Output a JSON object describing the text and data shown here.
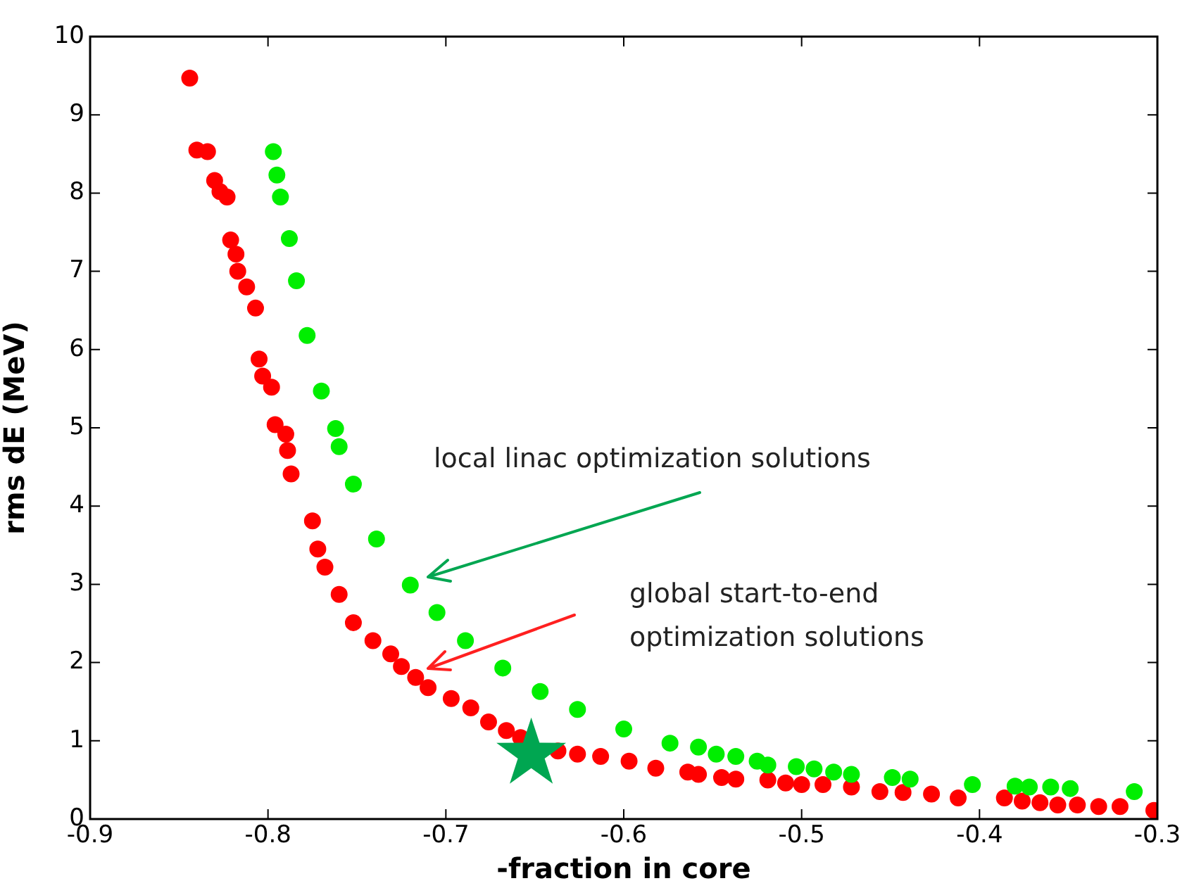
{
  "chart_data": {
    "type": "scatter",
    "xlabel": "-fraction in core",
    "ylabel": "rms dE (MeV)",
    "xlim": [
      -0.9,
      -0.3
    ],
    "xticks": [
      -0.9,
      -0.8,
      -0.7,
      -0.6,
      -0.5,
      -0.4,
      -0.3
    ],
    "ylim": [
      0,
      10
    ],
    "yticks": [
      0,
      1,
      2,
      3,
      4,
      5,
      6,
      7,
      8,
      9,
      10
    ],
    "grid": false,
    "marker": "circle",
    "annotations": [
      "local linac optimization solutions",
      "global start-to-end\noptimization solutions"
    ],
    "series": [
      {
        "color": "#00ee00",
        "x": [
          -0.797,
          -0.795,
          -0.793,
          -0.788,
          -0.784,
          -0.778,
          -0.77,
          -0.762,
          -0.76,
          -0.752,
          -0.739,
          -0.72,
          -0.705,
          -0.689,
          -0.668,
          -0.647,
          -0.626,
          -0.6,
          -0.574,
          -0.558,
          -0.548,
          -0.537,
          -0.525,
          -0.519,
          -0.503,
          -0.493,
          -0.482,
          -0.472,
          -0.449,
          -0.439,
          -0.404,
          -0.38,
          -0.372,
          -0.36,
          -0.349,
          -0.313
        ],
        "values": [
          8.53,
          8.23,
          7.95,
          7.42,
          6.88,
          6.18,
          5.47,
          4.99,
          4.76,
          4.28,
          3.58,
          2.99,
          2.64,
          2.28,
          1.93,
          1.63,
          1.4,
          1.15,
          0.97,
          0.92,
          0.83,
          0.8,
          0.74,
          0.69,
          0.67,
          0.64,
          0.6,
          0.57,
          0.53,
          0.51,
          0.44,
          0.42,
          0.41,
          0.41,
          0.39,
          0.35
        ]
      },
      {
        "color": "#ff0000",
        "x": [
          -0.844,
          -0.84,
          -0.834,
          -0.83,
          -0.827,
          -0.823,
          -0.821,
          -0.818,
          -0.817,
          -0.812,
          -0.807,
          -0.805,
          -0.803,
          -0.798,
          -0.796,
          -0.79,
          -0.789,
          -0.787,
          -0.775,
          -0.772,
          -0.768,
          -0.76,
          -0.752,
          -0.741,
          -0.731,
          -0.725,
          -0.717,
          -0.71,
          -0.697,
          -0.686,
          -0.676,
          -0.666,
          -0.658,
          -0.637,
          -0.626,
          -0.613,
          -0.597,
          -0.582,
          -0.564,
          -0.558,
          -0.545,
          -0.537,
          -0.519,
          -0.509,
          -0.5,
          -0.488,
          -0.472,
          -0.456,
          -0.443,
          -0.427,
          -0.412,
          -0.386,
          -0.376,
          -0.366,
          -0.356,
          -0.345,
          -0.333,
          -0.321,
          -0.302
        ],
        "values": [
          9.47,
          8.55,
          8.53,
          8.16,
          8.02,
          7.95,
          7.4,
          7.22,
          7.0,
          6.8,
          6.53,
          5.88,
          5.66,
          5.52,
          5.04,
          4.92,
          4.71,
          4.41,
          3.81,
          3.45,
          3.22,
          2.87,
          2.51,
          2.28,
          2.11,
          1.95,
          1.81,
          1.68,
          1.54,
          1.42,
          1.24,
          1.13,
          1.04,
          0.87,
          0.83,
          0.8,
          0.74,
          0.65,
          0.6,
          0.57,
          0.53,
          0.51,
          0.5,
          0.46,
          0.44,
          0.44,
          0.41,
          0.35,
          0.34,
          0.32,
          0.27,
          0.27,
          0.23,
          0.21,
          0.18,
          0.18,
          0.16,
          0.16,
          0.11
        ]
      },
      {
        "color": "#00a651",
        "marker": "star",
        "x": [
          -0.652
        ],
        "values": [
          0.83
        ]
      }
    ]
  }
}
